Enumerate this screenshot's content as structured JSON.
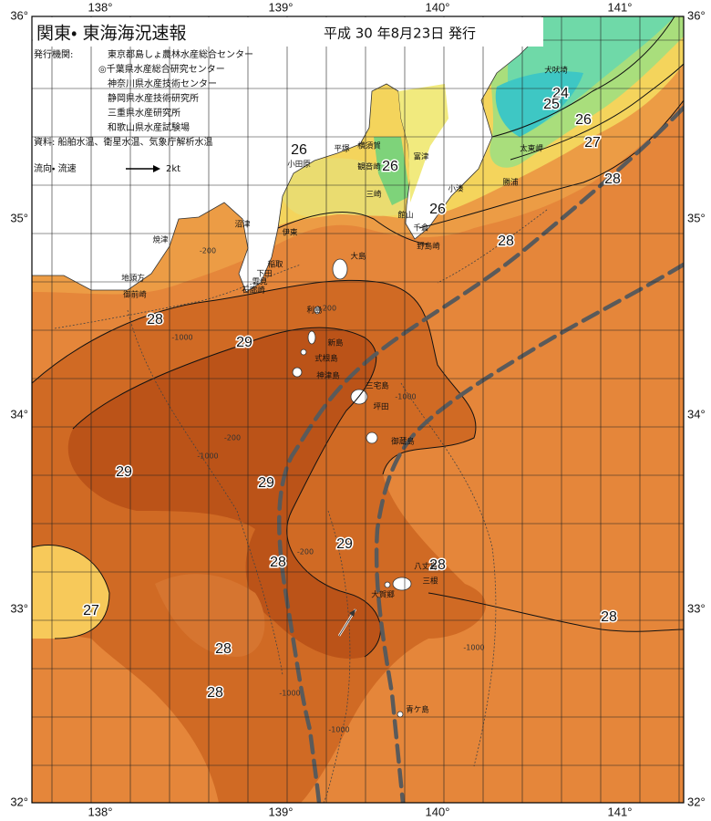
{
  "header": {
    "title": "関東・ 東海海況速報",
    "date": "平成 30 年8月23日 発行"
  },
  "issuers": {
    "label": "発行機関:",
    "names": [
      "東京都島しょ農林水産総合センター",
      "◎千葉県水産総合研究センター",
      "神奈川県水産技術センター",
      "静岡県水産技術研究所",
      "三重県水産研究所",
      "和歌山県水産試験場"
    ]
  },
  "source": "資料: 船舶水温、衛星水温、気象庁解析水温",
  "legend": {
    "label": "流向・ 流速",
    "speed": "2kt"
  },
  "axes": {
    "longitude": [
      "138°",
      "139°",
      "140°",
      "141°"
    ],
    "latitude": [
      "36°",
      "35°",
      "34°",
      "33°",
      "32°"
    ]
  },
  "temperature_labels": [
    26,
    26,
    26,
    24,
    25,
    26,
    27,
    28,
    28,
    28,
    29,
    29,
    29,
    29,
    28,
    28,
    27,
    28,
    28,
    28
  ],
  "depth_labels": [
    "-200",
    "-1000",
    "-200",
    "-1000",
    "-200",
    "-1000",
    "-200",
    "-1000",
    "-1000",
    "-1000"
  ],
  "places": [
    "犬吠埼",
    "太東岬",
    "勝浦",
    "小湊",
    "千倉",
    "野島崎",
    "館山",
    "富津",
    "横須賀",
    "平塚",
    "小田原",
    "観音崎",
    "三崎",
    "伊東",
    "稲取",
    "下田",
    "石廊崎",
    "雲見",
    "大島",
    "利島",
    "新島",
    "式根島",
    "神津島",
    "三宅島",
    "坪田",
    "御蔵島",
    "八丈島",
    "三根",
    "大賀郷",
    "青ケ島",
    "焼津",
    "沼津",
    "地頭方",
    "御前崎"
  ]
}
